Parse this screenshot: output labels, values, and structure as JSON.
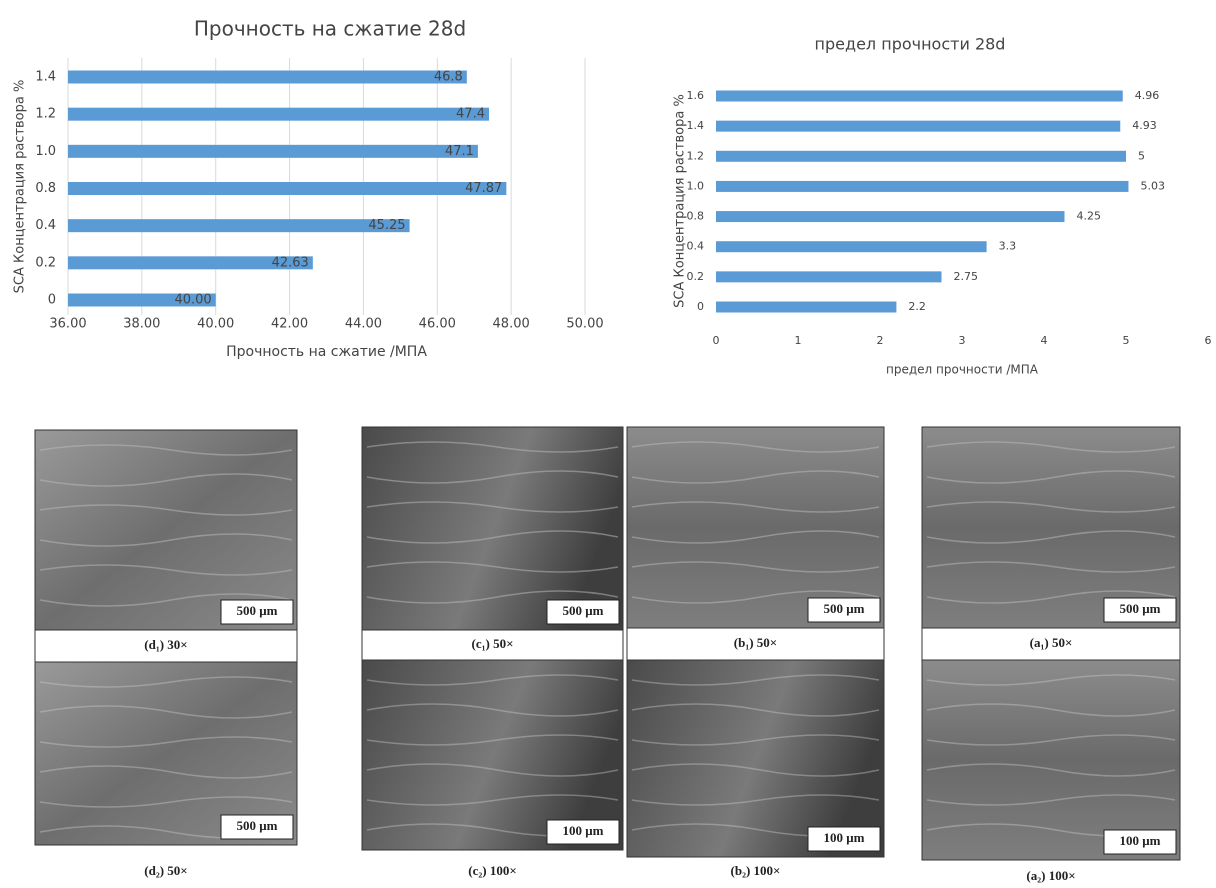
{
  "chart_data": [
    {
      "type": "bar",
      "orientation": "horizontal",
      "title": "Прочность на сжатие 28d",
      "x_label": "Прочность на сжатие /МПА",
      "y_label": "SCA Концентрация раствора %",
      "categories": [
        "0",
        "0.2",
        "0.4",
        "0.8",
        "1.0",
        "1.2",
        "1.4"
      ],
      "values": [
        40,
        42.63,
        45.25,
        47.87,
        47.1,
        47.4,
        46.8
      ],
      "value_labels": [
        "40.00",
        "42.63",
        "45.25",
        "47.87",
        "47.1",
        "47.4",
        "46.8"
      ],
      "color": "#5b9bd5",
      "grid": true,
      "xlim": [
        36,
        50
      ],
      "xticks": [
        {
          "value": 36,
          "label": "36.00"
        },
        {
          "value": 38,
          "label": "38.00"
        },
        {
          "value": 40,
          "label": "40.00"
        },
        {
          "value": 42,
          "label": "42.00"
        },
        {
          "value": 44,
          "label": "44.00"
        },
        {
          "value": 46,
          "label": "46.00"
        },
        {
          "value": 48,
          "label": "48.00"
        },
        {
          "value": 50,
          "label": "50.00"
        }
      ]
    },
    {
      "type": "bar",
      "orientation": "horizontal",
      "title": "предел прочности 28d",
      "x_label": "предел прочности /МПА",
      "y_label": "SCA Концентрация раствора %",
      "categories": [
        "0",
        "0.2",
        "0.4",
        "0.8",
        "1.0",
        "1.2",
        "1.4",
        "1.6"
      ],
      "values": [
        2.2,
        2.75,
        3.3,
        4.25,
        5.03,
        5,
        4.93,
        4.96
      ],
      "color": "#5b9bd5",
      "grid": false,
      "xlim": [
        0,
        6
      ],
      "xticks": [
        0,
        1,
        2,
        3,
        4,
        5,
        6
      ]
    }
  ],
  "panels": [
    {
      "top_caption": "(d₁) 30×",
      "top_scale": "500 μm",
      "bottom_caption": "(d₂) 50×",
      "bottom_scale": "500 μm"
    },
    {
      "top_caption": "(c₁) 50×",
      "top_scale": "500 μm",
      "bottom_caption": "(c₂) 100×",
      "bottom_scale": "100 μm"
    },
    {
      "top_caption": "(b₁) 50×",
      "top_scale": "500 μm",
      "bottom_caption": "(b₂) 100×",
      "bottom_scale": "100 μm"
    },
    {
      "top_caption": "(a₁) 50×",
      "top_scale": "500 μm",
      "bottom_caption": "(a₂) 100×",
      "bottom_scale": "100 μm"
    }
  ]
}
